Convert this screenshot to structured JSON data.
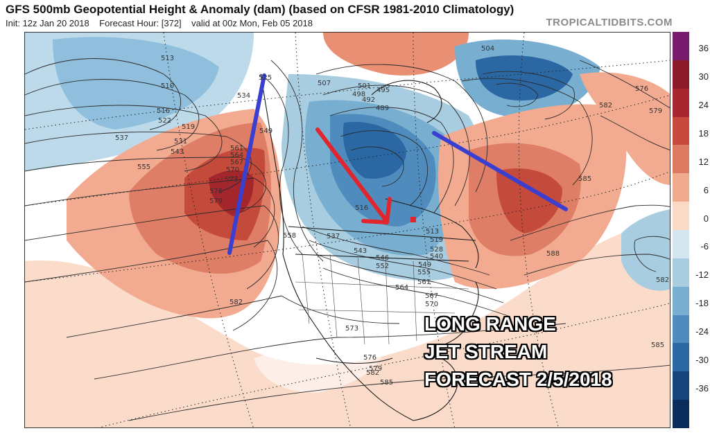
{
  "header": {
    "title": "GFS 500mb Geopotential Height & Anomaly (dam) (based on CFSR 1981-2010 Climatology)",
    "init": "Init: 12z Jan 20 2018",
    "forecast_hour": "Forecast Hour: [372]",
    "valid": "valid at 00z Mon, Feb 05 2018",
    "credit": "TROPICALTIDBITS.COM"
  },
  "colorbar": {
    "labels": [
      "36",
      "30",
      "24",
      "18",
      "12",
      "6",
      "0",
      "-6",
      "-12",
      "-18",
      "-24",
      "-30",
      "-36"
    ],
    "colors": [
      "#7a1c6e",
      "#8b1a2b",
      "#a8262f",
      "#c74a3f",
      "#dd7a62",
      "#f0aa8e",
      "#fbd9c7",
      "#d3e6f0",
      "#a8cde0",
      "#78aed0",
      "#4f8cbd",
      "#2b67a3",
      "#16447c",
      "#0b2d5c"
    ]
  },
  "overlay": {
    "line1": "LONG RANGE",
    "line2": "JET STREAM",
    "line3": "FORECAST 2/5/2018"
  },
  "contour_labels": [
    "504",
    "513",
    "510",
    "516",
    "522",
    "537",
    "531",
    "543",
    "555",
    "519",
    "525",
    "534",
    "549",
    "561",
    "564",
    "567",
    "570",
    "573",
    "576",
    "579",
    "582",
    "507",
    "501",
    "495",
    "498",
    "492",
    "489",
    "516",
    "537",
    "543",
    "546",
    "552",
    "558",
    "564",
    "567",
    "570",
    "573",
    "576",
    "579",
    "582",
    "585",
    "588",
    "555",
    "561",
    "549",
    "540",
    "528",
    "519",
    "513",
    "576",
    "579",
    "582",
    "585",
    "582",
    "585"
  ],
  "arrows": {
    "blue_color": "#3b3fd0",
    "red_color": "#e0262c"
  }
}
